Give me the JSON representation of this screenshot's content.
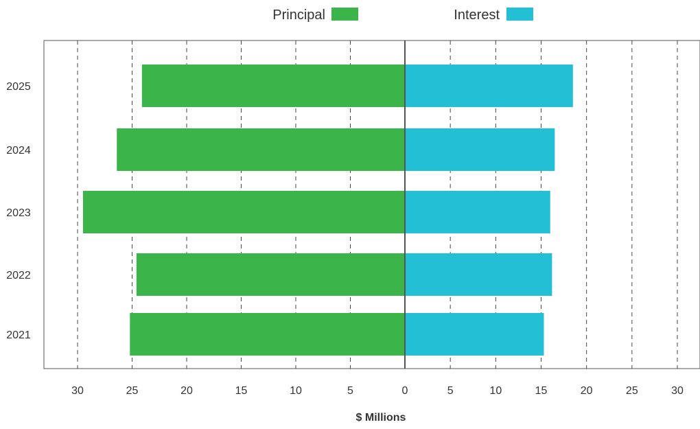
{
  "chart_data": {
    "type": "bar",
    "orientation": "horizontal",
    "layout": "diverging",
    "categories": [
      "2021",
      "2022",
      "2023",
      "2024",
      "2025"
    ],
    "series": [
      {
        "name": "Principal",
        "side": "left",
        "color": "#3bb54a",
        "values": [
          25.2,
          24.6,
          29.5,
          26.4,
          24.1
        ]
      },
      {
        "name": "Interest",
        "side": "right",
        "color": "#22bfd5",
        "values": [
          15.3,
          16.2,
          16.0,
          16.5,
          18.5
        ]
      }
    ],
    "xlabel": "$ Millions",
    "left_ticks": [
      30,
      25,
      20,
      15,
      10,
      5
    ],
    "right_ticks": [
      5,
      10,
      15,
      20,
      25,
      30
    ],
    "center_tick": 0,
    "xlim": [
      0,
      30
    ],
    "grid": true,
    "legend_position": "top-center"
  }
}
